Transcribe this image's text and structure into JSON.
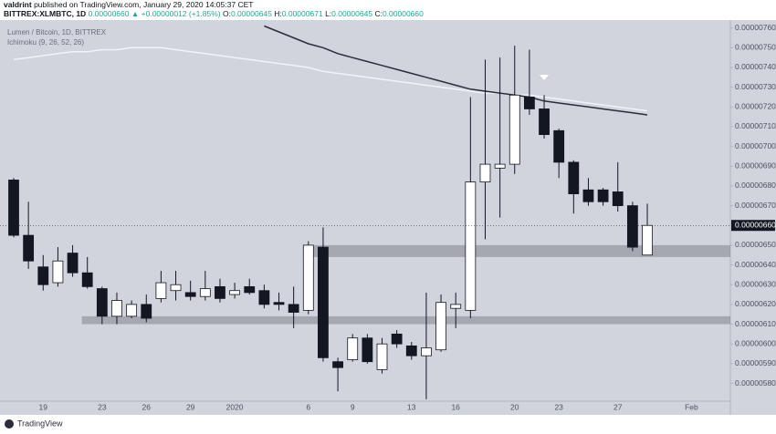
{
  "header": {
    "author": "valdrint",
    "published": "published on TradingView.com, January 29, 2020 14:05:37 CET",
    "symbol": "BITTREX:XLMBTC, 1D",
    "price": "0.00000660",
    "change": "▲ +0.00000012 (+1.85%)",
    "ohlc": [
      {
        "key": "O:",
        "value": "0.00000645"
      },
      {
        "key": "H:",
        "value": "0.00000671"
      },
      {
        "key": "L:",
        "value": "0.00000645"
      },
      {
        "key": "C:",
        "value": "0.00000660"
      }
    ]
  },
  "footer": {
    "brand": "TradingView"
  },
  "chart_data": {
    "type": "candlestick",
    "title": "Lumen / Bitcoin, 1D, BITTREX",
    "indicator": "Ichimoku (9, 26, 52, 26)",
    "categories": [
      null,
      null,
      "19",
      null,
      null,
      null,
      "23",
      null,
      null,
      "26",
      null,
      null,
      "29",
      null,
      null,
      "2020",
      null,
      null,
      null,
      null,
      "6",
      null,
      null,
      "9",
      null,
      null,
      null,
      "13",
      null,
      null,
      "16",
      null,
      null,
      null,
      "20",
      null,
      null,
      "23",
      null,
      null,
      null,
      "27",
      null,
      null,
      null,
      null,
      "Feb"
    ],
    "open": [
      6.83e-06,
      6.55e-06,
      6.39e-06,
      6.31e-06,
      6.46e-06,
      6.36e-06,
      6.28e-06,
      6.14e-06,
      6.14e-06,
      6.2e-06,
      6.23e-06,
      6.27e-06,
      6.26e-06,
      6.24e-06,
      6.29e-06,
      6.25e-06,
      6.29e-06,
      6.27e-06,
      6.21e-06,
      6.2e-06,
      6.17e-06,
      6.49e-06,
      5.91e-06,
      5.92e-06,
      6.03e-06,
      5.87e-06,
      6.05e-06,
      5.99e-06,
      5.94e-06,
      5.97e-06,
      6.18e-06,
      6.17e-06,
      6.82e-06,
      6.89e-06,
      6.91e-06,
      7.25e-06,
      7.19e-06,
      7.08e-06,
      6.92e-06,
      6.78e-06,
      6.78e-06,
      6.77e-06,
      6.7e-06,
      6.45e-06,
      null,
      null,
      null
    ],
    "high": [
      6.84e-06,
      6.72e-06,
      6.45e-06,
      6.49e-06,
      6.5e-06,
      6.44e-06,
      6.29e-06,
      6.26e-06,
      6.22e-06,
      6.25e-06,
      6.37e-06,
      6.37e-06,
      6.32e-06,
      6.37e-06,
      6.33e-06,
      6.31e-06,
      6.33e-06,
      6.3e-06,
      6.26e-06,
      6.29e-06,
      6.52e-06,
      6.59e-06,
      5.93e-06,
      6.05e-06,
      6.05e-06,
      6.03e-06,
      6.07e-06,
      6.01e-06,
      6.26e-06,
      6.25e-06,
      6.26e-06,
      7.25e-06,
      7.44e-06,
      7.45e-06,
      7.51e-06,
      7.49e-06,
      7.26e-06,
      7.09e-06,
      6.93e-06,
      6.84e-06,
      6.79e-06,
      6.92e-06,
      6.72e-06,
      6.71e-06,
      null,
      null,
      null
    ],
    "low": [
      6.54e-06,
      6.38e-06,
      6.27e-06,
      6.29e-06,
      6.34e-06,
      6.28e-06,
      6.1e-06,
      6.1e-06,
      6.13e-06,
      6.11e-06,
      6.21e-06,
      6.22e-06,
      6.22e-06,
      6.22e-06,
      6.21e-06,
      6.23e-06,
      6.25e-06,
      6.18e-06,
      6.17e-06,
      6.08e-06,
      6.15e-06,
      5.91e-06,
      5.76e-06,
      5.91e-06,
      5.9e-06,
      5.85e-06,
      5.98e-06,
      5.92e-06,
      5.72e-06,
      5.96e-06,
      6.08e-06,
      6.13e-06,
      6.53e-06,
      6.64e-06,
      6.86e-06,
      7.16e-06,
      7.04e-06,
      6.84e-06,
      6.66e-06,
      6.7e-06,
      6.7e-06,
      6.67e-06,
      6.47e-06,
      6.45e-06,
      null,
      null,
      null
    ],
    "close": [
      6.55e-06,
      6.42e-06,
      6.3e-06,
      6.42e-06,
      6.36e-06,
      6.29e-06,
      6.14e-06,
      6.22e-06,
      6.2e-06,
      6.13e-06,
      6.31e-06,
      6.3e-06,
      6.24e-06,
      6.28e-06,
      6.23e-06,
      6.27e-06,
      6.26e-06,
      6.2e-06,
      6.2e-06,
      6.16e-06,
      6.5e-06,
      5.93e-06,
      5.88e-06,
      6.03e-06,
      5.91e-06,
      6e-06,
      6e-06,
      5.94e-06,
      5.98e-06,
      6.21e-06,
      6.2e-06,
      6.82e-06,
      6.91e-06,
      6.91e-06,
      7.26e-06,
      7.19e-06,
      7.06e-06,
      6.92e-06,
      6.76e-06,
      6.72e-06,
      6.72e-06,
      6.7e-06,
      6.49e-06,
      6.6e-06,
      null,
      null,
      null
    ],
    "up_color": "#ffffff",
    "down_color": "#131722",
    "lines": [
      {
        "color": "#f0f3fa",
        "values": [
          7.44e-06,
          7.45e-06,
          7.46e-06,
          7.47e-06,
          7.48e-06,
          7.48e-06,
          7.49e-06,
          7.49e-06,
          7.5e-06,
          7.5e-06,
          7.5e-06,
          7.49e-06,
          7.48e-06,
          7.47e-06,
          7.46e-06,
          7.45e-06,
          7.44e-06,
          7.43e-06,
          7.42e-06,
          7.41e-06,
          7.4e-06,
          7.38e-06,
          7.37e-06,
          7.36e-06,
          7.35e-06,
          7.34e-06,
          7.33e-06,
          7.32e-06,
          7.31e-06,
          7.3e-06,
          7.29e-06,
          7.28e-06,
          7.27e-06,
          7.27e-06,
          7.26e-06,
          7.26e-06,
          7.25e-06,
          7.24e-06,
          7.23e-06,
          7.22e-06,
          7.21e-06,
          7.2e-06,
          7.19e-06,
          7.18e-06,
          null,
          null,
          null
        ]
      },
      {
        "color": "#2a2e39",
        "values": [
          null,
          null,
          null,
          null,
          null,
          null,
          null,
          null,
          null,
          null,
          null,
          null,
          null,
          null,
          null,
          null,
          null,
          7.61e-06,
          7.58e-06,
          7.55e-06,
          7.52e-06,
          7.5e-06,
          7.47e-06,
          7.45e-06,
          7.43e-06,
          7.41e-06,
          7.39e-06,
          7.37e-06,
          7.35e-06,
          7.33e-06,
          7.31e-06,
          7.29e-06,
          7.28e-06,
          7.27e-06,
          7.26e-06,
          7.25e-06,
          7.23e-06,
          7.22e-06,
          7.21e-06,
          7.2e-06,
          7.19e-06,
          7.18e-06,
          7.17e-06,
          7.16e-06,
          null,
          null,
          null
        ]
      }
    ],
    "zones": [
      {
        "low": 6.1e-06,
        "high": 6.14e-06
      },
      {
        "low": 6.44e-06,
        "high": 6.5e-06
      }
    ],
    "last_price": {
      "value": 6.6e-06,
      "label": "0.00000660"
    },
    "ylim": [
      5.71e-06,
      7.64e-06
    ],
    "yticks": [
      {
        "value": 5.8e-06,
        "label": "0.00000580"
      },
      {
        "value": 5.9e-06,
        "label": "0.00000590"
      },
      {
        "value": 6e-06,
        "label": "0.00000600"
      },
      {
        "value": 6.1e-06,
        "label": "0.00000610"
      },
      {
        "value": 6.2e-06,
        "label": "0.00000620"
      },
      {
        "value": 6.3e-06,
        "label": "0.00000630"
      },
      {
        "value": 6.4e-06,
        "label": "0.00000640"
      },
      {
        "value": 6.5e-06,
        "label": "0.00000650"
      },
      {
        "value": 6.6e-06,
        "label": "0.00000660"
      },
      {
        "value": 6.7e-06,
        "label": "0.00000670"
      },
      {
        "value": 6.8e-06,
        "label": "0.00000680"
      },
      {
        "value": 6.9e-06,
        "label": "0.00000690"
      },
      {
        "value": 7e-06,
        "label": "0.00000700"
      },
      {
        "value": 7.1e-06,
        "label": "0.00000710"
      },
      {
        "value": 7.2e-06,
        "label": "0.00000720"
      },
      {
        "value": 7.3e-06,
        "label": "0.00000730"
      },
      {
        "value": 7.4e-06,
        "label": "0.00000740"
      },
      {
        "value": 7.5e-06,
        "label": "0.00000750"
      },
      {
        "value": 7.6e-06,
        "label": "0.00000760"
      }
    ]
  }
}
